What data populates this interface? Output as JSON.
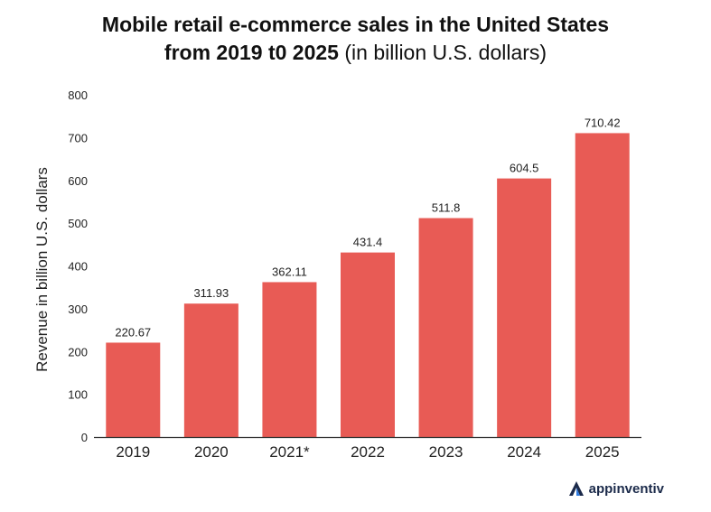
{
  "title": {
    "line1": "Mobile retail e-commerce sales in the United States",
    "line2_bold": "from 2019 t0 2025",
    "line2_light": "(in billion U.S. dollars)"
  },
  "brand": {
    "name": "appinventiv",
    "icon": "appinventiv-logo-icon"
  },
  "colors": {
    "bar": "#e85b55",
    "axis": "#333333"
  },
  "chart_data": {
    "type": "bar",
    "categories": [
      "2019",
      "2020",
      "2021*",
      "2022",
      "2023",
      "2024",
      "2025"
    ],
    "values": [
      220.67,
      311.93,
      362.11,
      431.4,
      511.8,
      604.5,
      710.42
    ],
    "value_labels": [
      "220.67",
      "311.93",
      "362.11",
      "431.4",
      "511.8",
      "604.5",
      "710.42"
    ],
    "title": "Mobile retail e-commerce sales in the United States from 2019 t0 2025 (in billion U.S. dollars)",
    "xlabel": "",
    "ylabel": "Revenue in billion U.S. dollars",
    "ylim": [
      0,
      800
    ],
    "yticks": [
      0,
      100,
      200,
      300,
      400,
      500,
      600,
      700,
      800
    ],
    "grid": false,
    "legend": "none"
  }
}
